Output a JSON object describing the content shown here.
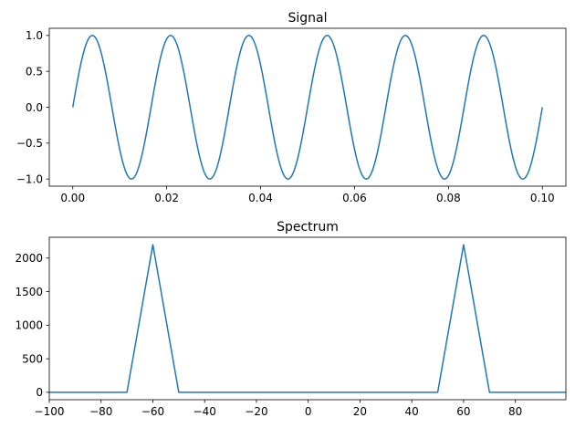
{
  "chart_data": [
    {
      "type": "line",
      "title": "Signal",
      "xlabel": "",
      "ylabel": "",
      "xlim": [
        -0.005,
        0.105
      ],
      "ylim": [
        -1.1,
        1.1
      ],
      "xticks": [
        0.0,
        0.02,
        0.04,
        0.06,
        0.08,
        0.1
      ],
      "xtick_labels": [
        "0.00",
        "0.02",
        "0.04",
        "0.06",
        "0.08",
        "0.10"
      ],
      "yticks": [
        -1.0,
        -0.5,
        0.0,
        0.5,
        1.0
      ],
      "ytick_labels": [
        "−1.0",
        "−0.5",
        "0.0",
        "0.5",
        "1.0"
      ],
      "grid": false,
      "series": [
        {
          "color": "#1f77b4",
          "function": "sin(2*pi*60*t)",
          "frequency_hz": 60,
          "amplitude": 1,
          "t_start": 0.0,
          "t_end": 0.1,
          "samples": 1000
        }
      ]
    },
    {
      "type": "line",
      "title": "Spectrum",
      "xlabel": "",
      "ylabel": "",
      "xlim": [
        -100,
        99.5
      ],
      "ylim": [
        -110,
        2310
      ],
      "xticks": [
        -100,
        -80,
        -60,
        -40,
        -20,
        0,
        20,
        40,
        60,
        80
      ],
      "xtick_labels": [
        "−100",
        "−80",
        "−60",
        "−40",
        "−20",
        "0",
        "20",
        "40",
        "60",
        "80"
      ],
      "yticks": [
        0,
        500,
        1000,
        1500,
        2000
      ],
      "ytick_labels": [
        "0",
        "500",
        "1000",
        "1500",
        "2000"
      ],
      "grid": false,
      "series": [
        {
          "color": "#1f77b4",
          "x": [
            -100,
            -70,
            -60,
            -50,
            50,
            60,
            70,
            100
          ],
          "y": [
            0,
            0,
            2200,
            0,
            0,
            2200,
            0,
            0
          ]
        }
      ]
    }
  ]
}
